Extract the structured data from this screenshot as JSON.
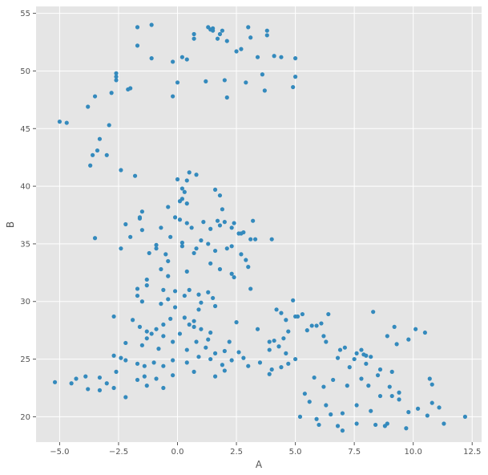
{
  "chart_data": {
    "type": "scatter",
    "title": "",
    "xlabel": "A",
    "ylabel": "B",
    "xlim": [
      -6.0,
      12.9
    ],
    "ylim": [
      17.8,
      55.6
    ],
    "xticks": [
      -5.0,
      -2.5,
      0.0,
      2.5,
      5.0,
      7.5,
      10.0,
      12.5
    ],
    "xtick_labels": [
      "−5.0",
      "−2.5",
      "0.0",
      "2.5",
      "5.0",
      "7.5",
      "10.0",
      "12.5"
    ],
    "yticks": [
      20,
      25,
      30,
      35,
      40,
      45,
      50,
      55
    ],
    "ytick_labels": [
      "20",
      "25",
      "30",
      "35",
      "40",
      "45",
      "50",
      "55"
    ],
    "grid": true,
    "legend": "none",
    "colors": {
      "point": "#348abd",
      "background": "#e5e5e5",
      "grid": "#ffffff"
    },
    "points": [
      [
        -5.0,
        45.6
      ],
      [
        -4.7,
        45.5
      ],
      [
        -3.8,
        46.9
      ],
      [
        -3.5,
        47.8
      ],
      [
        -3.7,
        41.8
      ],
      [
        -3.6,
        42.7
      ],
      [
        -3.3,
        44.1
      ],
      [
        -3.4,
        43.1
      ],
      [
        -3.0,
        42.7
      ],
      [
        -2.9,
        45.3
      ],
      [
        -2.8,
        48.1
      ],
      [
        -2.6,
        49.2
      ],
      [
        -2.6,
        49.5
      ],
      [
        -2.6,
        49.8
      ],
      [
        -2.1,
        48.4
      ],
      [
        -2.0,
        48.5
      ],
      [
        -1.7,
        52.2
      ],
      [
        -1.7,
        53.8
      ],
      [
        -1.1,
        54.0
      ],
      [
        -1.1,
        51.1
      ],
      [
        -0.2,
        50.8
      ],
      [
        0.2,
        51.2
      ],
      [
        0.4,
        51.0
      ],
      [
        0.7,
        52.8
      ],
      [
        0.7,
        53.2
      ],
      [
        1.3,
        53.8
      ],
      [
        1.4,
        53.6
      ],
      [
        1.5,
        53.7
      ],
      [
        1.5,
        53.5
      ],
      [
        1.7,
        52.8
      ],
      [
        1.8,
        53.2
      ],
      [
        1.9,
        53.5
      ],
      [
        2.1,
        52.6
      ],
      [
        2.5,
        51.7
      ],
      [
        2.7,
        51.9
      ],
      [
        3.0,
        53.8
      ],
      [
        3.1,
        52.9
      ],
      [
        3.4,
        51.2
      ],
      [
        3.8,
        53.1
      ],
      [
        3.8,
        53.5
      ],
      [
        4.1,
        51.3
      ],
      [
        4.4,
        51.2
      ],
      [
        5.0,
        51.1
      ],
      [
        5.0,
        49.5
      ],
      [
        4.9,
        48.6
      ],
      [
        3.6,
        49.7
      ],
      [
        3.7,
        48.3
      ],
      [
        2.9,
        49.0
      ],
      [
        2.0,
        49.2
      ],
      [
        2.1,
        47.7
      ],
      [
        1.2,
        49.1
      ],
      [
        0.0,
        49.0
      ],
      [
        -0.2,
        47.8
      ],
      [
        -2.4,
        41.4
      ],
      [
        -1.8,
        40.9
      ],
      [
        0.0,
        40.6
      ],
      [
        0.5,
        41.2
      ],
      [
        0.4,
        40.5
      ],
      [
        0.8,
        41.0
      ],
      [
        0.2,
        39.8
      ],
      [
        0.3,
        39.5
      ],
      [
        0.2,
        38.9
      ],
      [
        0.1,
        38.7
      ],
      [
        0.4,
        38.5
      ],
      [
        -0.4,
        38.2
      ],
      [
        1.6,
        39.7
      ],
      [
        1.8,
        39.2
      ],
      [
        1.9,
        38.0
      ],
      [
        -1.5,
        37.8
      ],
      [
        -1.6,
        37.3
      ],
      [
        -1.6,
        37.2
      ],
      [
        -2.2,
        36.7
      ],
      [
        -1.5,
        36.2
      ],
      [
        -0.7,
        36.4
      ],
      [
        -0.1,
        37.3
      ],
      [
        0.1,
        37.1
      ],
      [
        0.4,
        36.8
      ],
      [
        0.6,
        36.4
      ],
      [
        1.1,
        36.9
      ],
      [
        1.4,
        36.3
      ],
      [
        1.7,
        37.0
      ],
      [
        1.8,
        36.6
      ],
      [
        2.0,
        36.9
      ],
      [
        2.4,
        36.8
      ],
      [
        2.3,
        36.4
      ],
      [
        2.6,
        35.9
      ],
      [
        2.7,
        35.9
      ],
      [
        2.8,
        36.0
      ],
      [
        3.2,
        37.0
      ],
      [
        3.3,
        35.4
      ],
      [
        3.1,
        35.4
      ],
      [
        4.0,
        35.4
      ],
      [
        -3.5,
        35.5
      ],
      [
        -2.4,
        34.6
      ],
      [
        -2.0,
        35.6
      ],
      [
        -0.9,
        34.9
      ],
      [
        -0.9,
        34.6
      ],
      [
        -1.2,
        34.2
      ],
      [
        -0.5,
        34.1
      ],
      [
        -0.4,
        33.5
      ],
      [
        -0.3,
        35.6
      ],
      [
        0.2,
        34.8
      ],
      [
        0.2,
        35.1
      ],
      [
        0.7,
        34.2
      ],
      [
        0.8,
        34.6
      ],
      [
        1.0,
        35.3
      ],
      [
        1.3,
        35.0
      ],
      [
        1.6,
        34.4
      ],
      [
        2.1,
        34.6
      ],
      [
        2.3,
        34.8
      ],
      [
        2.7,
        34.1
      ],
      [
        2.9,
        33.6
      ],
      [
        3.0,
        33.0
      ],
      [
        -0.7,
        32.8
      ],
      [
        -0.4,
        32.2
      ],
      [
        0.4,
        32.6
      ],
      [
        1.4,
        33.3
      ],
      [
        1.8,
        32.8
      ],
      [
        2.3,
        32.4
      ],
      [
        2.4,
        32.1
      ],
      [
        3.1,
        31.1
      ],
      [
        -1.3,
        31.9
      ],
      [
        -1.3,
        31.4
      ],
      [
        -1.7,
        31.1
      ],
      [
        -1.7,
        30.5
      ],
      [
        -0.6,
        31.0
      ],
      [
        -0.1,
        30.9
      ],
      [
        0.3,
        30.5
      ],
      [
        0.5,
        31.0
      ],
      [
        0.9,
        30.6
      ],
      [
        1.3,
        30.8
      ],
      [
        1.5,
        30.3
      ],
      [
        1.0,
        29.9
      ],
      [
        -1.5,
        30.0
      ],
      [
        -0.7,
        29.8
      ],
      [
        -0.4,
        30.2
      ],
      [
        -0.1,
        29.5
      ],
      [
        0.9,
        29.3
      ],
      [
        1.6,
        29.6
      ],
      [
        2.5,
        28.2
      ],
      [
        4.2,
        29.3
      ],
      [
        4.4,
        29.0
      ],
      [
        4.6,
        28.4
      ],
      [
        4.9,
        30.1
      ],
      [
        5.0,
        28.7
      ],
      [
        5.1,
        28.7
      ],
      [
        5.3,
        28.9
      ],
      [
        6.4,
        28.9
      ],
      [
        8.3,
        29.1
      ],
      [
        -2.7,
        28.7
      ],
      [
        -1.9,
        28.4
      ],
      [
        -1.6,
        27.8
      ],
      [
        -1.3,
        27.4
      ],
      [
        -0.9,
        27.6
      ],
      [
        -0.6,
        28.0
      ],
      [
        -0.3,
        28.5
      ],
      [
        0.3,
        28.6
      ],
      [
        0.5,
        28.0
      ],
      [
        0.7,
        27.8
      ],
      [
        0.7,
        28.3
      ],
      [
        1.0,
        27.6
      ],
      [
        1.4,
        27.3
      ],
      [
        3.4,
        27.6
      ],
      [
        3.9,
        26.5
      ],
      [
        4.1,
        26.6
      ],
      [
        4.5,
        26.8
      ],
      [
        4.7,
        27.4
      ],
      [
        5.5,
        27.5
      ],
      [
        5.7,
        27.9
      ],
      [
        5.9,
        27.9
      ],
      [
        6.1,
        28.1
      ],
      [
        6.2,
        27.0
      ],
      [
        7.8,
        25.8
      ],
      [
        7.9,
        25.4
      ],
      [
        8.2,
        25.2
      ],
      [
        8.9,
        27.0
      ],
      [
        9.2,
        27.8
      ],
      [
        9.3,
        26.3
      ],
      [
        9.8,
        26.7
      ],
      [
        10.1,
        27.6
      ],
      [
        10.5,
        27.3
      ],
      [
        -2.2,
        26.4
      ],
      [
        -1.5,
        26.2
      ],
      [
        -1.3,
        26.8
      ],
      [
        -1.1,
        27.2
      ],
      [
        -0.8,
        25.9
      ],
      [
        -0.6,
        27.0
      ],
      [
        -0.2,
        26.5
      ],
      [
        0.1,
        27.2
      ],
      [
        0.4,
        25.8
      ],
      [
        0.8,
        26.5
      ],
      [
        1.2,
        26.0
      ],
      [
        1.3,
        26.7
      ],
      [
        1.6,
        25.5
      ],
      [
        2.0,
        25.7
      ],
      [
        2.2,
        26.5
      ],
      [
        2.6,
        25.6
      ],
      [
        3.9,
        25.8
      ],
      [
        4.3,
        26.1
      ],
      [
        4.6,
        25.5
      ],
      [
        6.3,
        26.5
      ],
      [
        6.9,
        25.8
      ],
      [
        7.1,
        26.0
      ],
      [
        7.6,
        25.5
      ],
      [
        8.0,
        25.3
      ],
      [
        -2.7,
        25.3
      ],
      [
        -2.4,
        25.1
      ],
      [
        -2.2,
        24.9
      ],
      [
        -1.7,
        24.6
      ],
      [
        -1.4,
        24.4
      ],
      [
        -1.0,
        24.7
      ],
      [
        -0.6,
        24.4
      ],
      [
        -0.2,
        24.9
      ],
      [
        0.4,
        24.7
      ],
      [
        0.9,
        25.2
      ],
      [
        1.4,
        25.0
      ],
      [
        1.9,
        24.5
      ],
      [
        2.3,
        24.9
      ],
      [
        2.8,
        25.1
      ],
      [
        3.0,
        24.4
      ],
      [
        3.5,
        24.7
      ],
      [
        4.0,
        24.1
      ],
      [
        4.4,
        24.3
      ],
      [
        4.7,
        24.6
      ],
      [
        5.0,
        25.0
      ],
      [
        6.8,
        25.1
      ],
      [
        7.3,
        24.3
      ],
      [
        7.5,
        25.0
      ],
      [
        8.0,
        24.6
      ],
      [
        8.6,
        24.1
      ],
      [
        9.1,
        23.9
      ],
      [
        -4.3,
        23.3
      ],
      [
        -4.5,
        22.9
      ],
      [
        -3.9,
        23.5
      ],
      [
        -3.8,
        22.4
      ],
      [
        -3.3,
        23.4
      ],
      [
        -3.3,
        22.3
      ],
      [
        -3.0,
        22.9
      ],
      [
        -2.7,
        22.5
      ],
      [
        -2.6,
        23.9
      ],
      [
        -2.2,
        21.7
      ],
      [
        -1.7,
        23.2
      ],
      [
        -1.4,
        23.5
      ],
      [
        -1.3,
        22.7
      ],
      [
        -0.9,
        23.3
      ],
      [
        -0.6,
        22.5
      ],
      [
        -0.2,
        23.6
      ],
      [
        0.7,
        23.9
      ],
      [
        1.6,
        23.5
      ],
      [
        2.0,
        24.0
      ],
      [
        3.9,
        23.7
      ],
      [
        5.4,
        22.0
      ],
      [
        5.8,
        23.4
      ],
      [
        6.2,
        22.6
      ],
      [
        6.6,
        23.2
      ],
      [
        7.2,
        22.7
      ],
      [
        7.8,
        23.3
      ],
      [
        8.1,
        22.7
      ],
      [
        8.5,
        23.6
      ],
      [
        9.0,
        22.6
      ],
      [
        9.4,
        22.1
      ],
      [
        10.7,
        23.3
      ],
      [
        10.8,
        22.8
      ],
      [
        -5.2,
        23.0
      ],
      [
        5.6,
        21.3
      ],
      [
        5.9,
        19.8
      ],
      [
        6.3,
        21.0
      ],
      [
        6.5,
        20.2
      ],
      [
        7.0,
        20.3
      ],
      [
        7.6,
        21.0
      ],
      [
        8.2,
        20.5
      ],
      [
        8.6,
        21.8
      ],
      [
        9.1,
        21.8
      ],
      [
        9.4,
        21.5
      ],
      [
        9.8,
        20.4
      ],
      [
        10.2,
        20.7
      ],
      [
        10.8,
        21.2
      ],
      [
        11.1,
        20.8
      ],
      [
        12.2,
        20.0
      ],
      [
        5.2,
        20.0
      ],
      [
        6.0,
        19.3
      ],
      [
        6.8,
        19.2
      ],
      [
        7.0,
        18.8
      ],
      [
        7.6,
        19.4
      ],
      [
        8.4,
        19.3
      ],
      [
        8.9,
        19.4
      ],
      [
        9.7,
        19.0
      ],
      [
        10.6,
        20.1
      ],
      [
        11.3,
        19.4
      ],
      [
        8.8,
        19.2
      ]
    ]
  }
}
